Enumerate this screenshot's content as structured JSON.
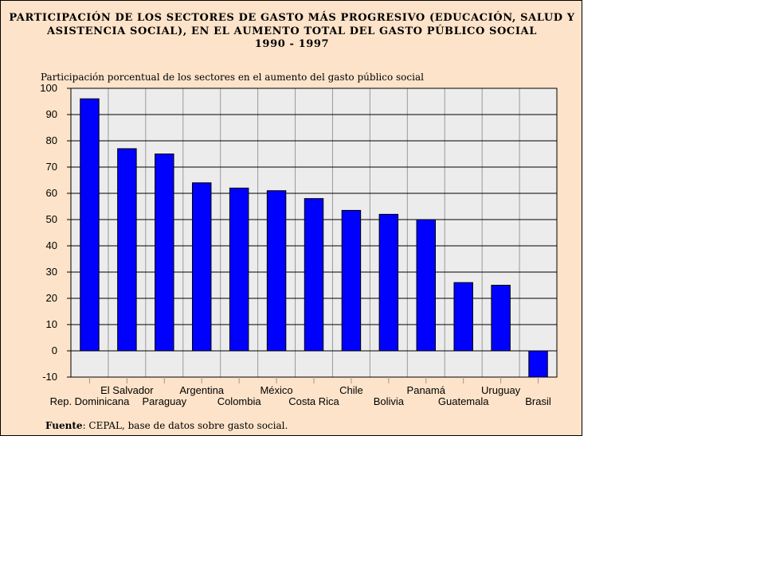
{
  "chart_data": {
    "type": "bar",
    "title_lines": [
      "PARTICIPACIÓN DE LOS SECTORES DE GASTO MÁS PROGRESIVO (EDUCACIÓN, SALUD Y",
      "ASISTENCIA SOCIAL), EN EL AUMENTO TOTAL DEL GASTO PÚBLICO SOCIAL",
      "1990 - 1997"
    ],
    "ylabel": "Participación porcentual de los sectores en el aumento del gasto público social",
    "xlabel": "",
    "ylim": [
      -10,
      100
    ],
    "yticks": [
      100,
      90,
      80,
      70,
      60,
      50,
      40,
      30,
      20,
      10,
      0,
      -10
    ],
    "grid": true,
    "legend": "none",
    "categories": [
      "Rep. Dominicana",
      "El Salvador",
      "Paraguay",
      "Argentina",
      "Colombia",
      "México",
      "Costa Rica",
      "Chile",
      "Bolivia",
      "Panamá",
      "Guatemala",
      "Uruguay",
      "Brasil"
    ],
    "values": [
      96,
      77,
      75,
      64,
      62,
      61,
      58,
      53.5,
      52,
      50,
      26,
      25,
      -10
    ]
  },
  "colors": {
    "panel_background": "#fde3c9",
    "plot_background": "#ececec",
    "bar_fill": "#0000ff",
    "bar_stroke": "#000000"
  },
  "source": {
    "label": "Fuente",
    "text": ": CEPAL, base de datos sobre gasto social."
  }
}
